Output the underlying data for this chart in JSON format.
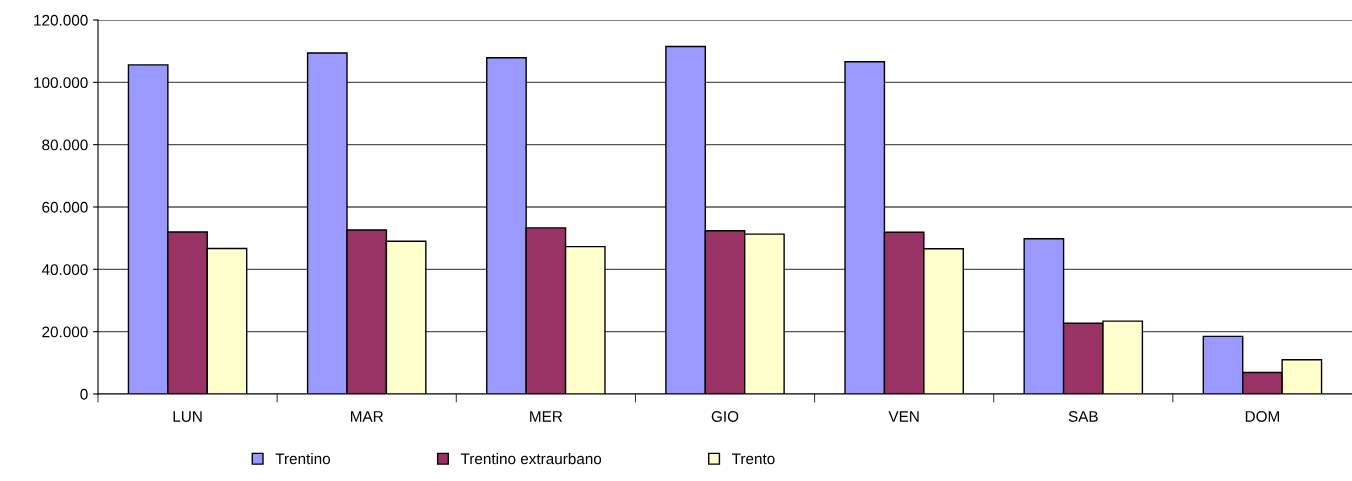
{
  "chart_data": {
    "type": "bar",
    "categories": [
      "LUN",
      "MAR",
      "MER",
      "GIO",
      "VEN",
      "SAB",
      "DOM"
    ],
    "series": [
      {
        "name": "Trentino",
        "color": "#9999ff",
        "values": [
          105600,
          109400,
          107900,
          111500,
          106600,
          49800,
          18500
        ]
      },
      {
        "name": "Trentino extraurbano",
        "color": "#993366",
        "values": [
          52000,
          52600,
          53300,
          52400,
          51900,
          22700,
          6900
        ]
      },
      {
        "name": "Trento",
        "color": "#ffffcc",
        "values": [
          46700,
          49000,
          47300,
          51300,
          46600,
          23400,
          11000
        ]
      }
    ],
    "ylim": [
      0,
      120000
    ],
    "yticks": [
      {
        "value": 0,
        "label": "0"
      },
      {
        "value": 20000,
        "label": "20.000"
      },
      {
        "value": 40000,
        "label": "40.000"
      },
      {
        "value": 60000,
        "label": "60.000"
      },
      {
        "value": 80000,
        "label": "80.000"
      },
      {
        "value": 100000,
        "label": "100.000"
      },
      {
        "value": 120000,
        "label": "120.000"
      }
    ],
    "grid": "y",
    "legend": "bottom"
  }
}
